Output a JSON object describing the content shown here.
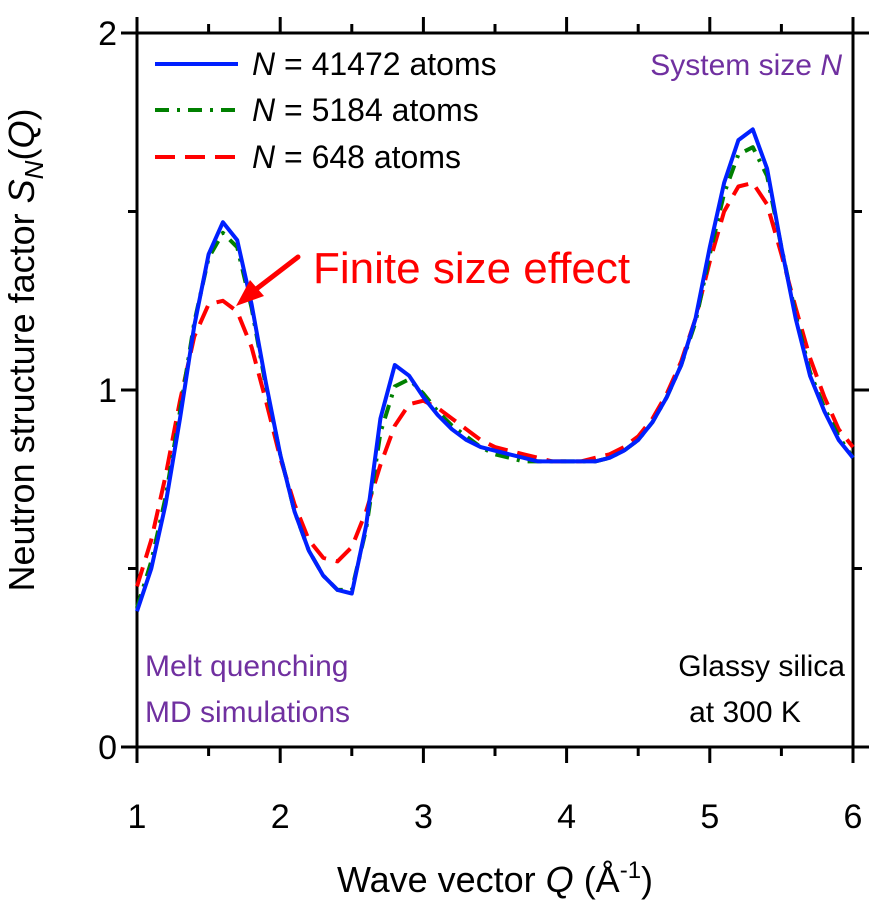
{
  "chart_data": {
    "type": "line",
    "xlabel": {
      "prefix": "Wave vector ",
      "var": "Q",
      "unit_open": " (Å",
      "unit_sup": "-1",
      "unit_close": ")"
    },
    "ylabel": {
      "prefix": "Neutron structure factor ",
      "var": "S",
      "sub": "N",
      "arg_open": "(",
      "arg": "Q",
      "arg_close": ")"
    },
    "xlim": [
      1,
      6
    ],
    "ylim": [
      0,
      2
    ],
    "x_ticks": [
      "1",
      "2",
      "3",
      "4",
      "5",
      "6"
    ],
    "y_ticks": [
      "0",
      "1",
      "2"
    ],
    "legend_position": "top-left",
    "series": [
      {
        "name_var": "N",
        "name_rest": " = 41472 atoms",
        "color": "#0020ff",
        "style": "solid",
        "x": [
          1.0,
          1.1,
          1.2,
          1.3,
          1.4,
          1.5,
          1.6,
          1.7,
          1.8,
          1.9,
          2.0,
          2.1,
          2.2,
          2.3,
          2.4,
          2.5,
          2.6,
          2.7,
          2.8,
          2.9,
          3.0,
          3.1,
          3.2,
          3.3,
          3.4,
          3.5,
          3.6,
          3.7,
          3.8,
          3.9,
          4.0,
          4.1,
          4.2,
          4.3,
          4.4,
          4.5,
          4.6,
          4.7,
          4.8,
          4.9,
          5.0,
          5.1,
          5.2,
          5.3,
          5.4,
          5.5,
          5.6,
          5.7,
          5.8,
          5.9,
          6.0
        ],
        "y": [
          0.38,
          0.5,
          0.68,
          0.92,
          1.18,
          1.38,
          1.47,
          1.42,
          1.24,
          1.02,
          0.82,
          0.66,
          0.55,
          0.48,
          0.44,
          0.43,
          0.62,
          0.92,
          1.07,
          1.04,
          0.98,
          0.93,
          0.89,
          0.86,
          0.84,
          0.83,
          0.82,
          0.81,
          0.8,
          0.8,
          0.8,
          0.8,
          0.8,
          0.81,
          0.83,
          0.86,
          0.91,
          0.98,
          1.07,
          1.2,
          1.4,
          1.58,
          1.7,
          1.73,
          1.62,
          1.4,
          1.2,
          1.04,
          0.94,
          0.86,
          0.81
        ]
      },
      {
        "name_var": "N",
        "name_rest": " = 5184 atoms",
        "color": "#008000",
        "style": "dashdot",
        "x": [
          1.0,
          1.1,
          1.2,
          1.3,
          1.4,
          1.5,
          1.6,
          1.7,
          1.8,
          1.9,
          2.0,
          2.1,
          2.2,
          2.3,
          2.4,
          2.5,
          2.6,
          2.7,
          2.8,
          2.9,
          3.0,
          3.1,
          3.2,
          3.3,
          3.4,
          3.5,
          3.6,
          3.7,
          3.8,
          3.9,
          4.0,
          4.1,
          4.2,
          4.3,
          4.4,
          4.5,
          4.6,
          4.7,
          4.8,
          4.9,
          5.0,
          5.1,
          5.2,
          5.3,
          5.4,
          5.5,
          5.6,
          5.7,
          5.8,
          5.9,
          6.0
        ],
        "y": [
          0.39,
          0.52,
          0.7,
          0.94,
          1.19,
          1.37,
          1.44,
          1.4,
          1.23,
          1.01,
          0.82,
          0.66,
          0.55,
          0.48,
          0.44,
          0.44,
          0.61,
          0.88,
          1.01,
          1.03,
          0.99,
          0.94,
          0.9,
          0.87,
          0.84,
          0.82,
          0.81,
          0.8,
          0.8,
          0.8,
          0.8,
          0.8,
          0.8,
          0.81,
          0.83,
          0.86,
          0.91,
          0.98,
          1.07,
          1.19,
          1.38,
          1.55,
          1.66,
          1.68,
          1.6,
          1.4,
          1.21,
          1.05,
          0.95,
          0.87,
          0.81
        ]
      },
      {
        "name_var": "N",
        "name_rest": " = 648 atoms",
        "color": "#ff0000",
        "style": "dashed",
        "x": [
          1.0,
          1.1,
          1.2,
          1.3,
          1.4,
          1.5,
          1.6,
          1.7,
          1.8,
          1.9,
          2.0,
          2.1,
          2.2,
          2.3,
          2.4,
          2.5,
          2.6,
          2.7,
          2.8,
          2.9,
          3.0,
          3.1,
          3.2,
          3.3,
          3.4,
          3.5,
          3.6,
          3.7,
          3.8,
          3.9,
          4.0,
          4.1,
          4.2,
          4.3,
          4.4,
          4.5,
          4.6,
          4.7,
          4.8,
          4.9,
          5.0,
          5.1,
          5.2,
          5.3,
          5.4,
          5.5,
          5.6,
          5.7,
          5.8,
          5.9,
          6.0
        ],
        "y": [
          0.45,
          0.58,
          0.76,
          0.97,
          1.15,
          1.24,
          1.25,
          1.22,
          1.12,
          0.97,
          0.81,
          0.68,
          0.58,
          0.53,
          0.52,
          0.56,
          0.66,
          0.79,
          0.9,
          0.96,
          0.97,
          0.95,
          0.92,
          0.89,
          0.86,
          0.84,
          0.83,
          0.82,
          0.81,
          0.8,
          0.8,
          0.8,
          0.81,
          0.82,
          0.84,
          0.87,
          0.92,
          0.99,
          1.08,
          1.2,
          1.36,
          1.5,
          1.57,
          1.58,
          1.52,
          1.38,
          1.23,
          1.09,
          0.98,
          0.89,
          0.84
        ]
      }
    ],
    "annotations": {
      "finite_size": "Finite size effect",
      "system_size_prefix": "System size ",
      "system_size_var": "N",
      "method_line1": "Melt quenching",
      "method_line2": "MD simulations",
      "material_line1": "Glassy silica",
      "material_line2": "at 300 K"
    },
    "colors": {
      "axes": "#000000",
      "annotation_purple": "#7030a0",
      "annotation_red": "#ff0000"
    }
  }
}
